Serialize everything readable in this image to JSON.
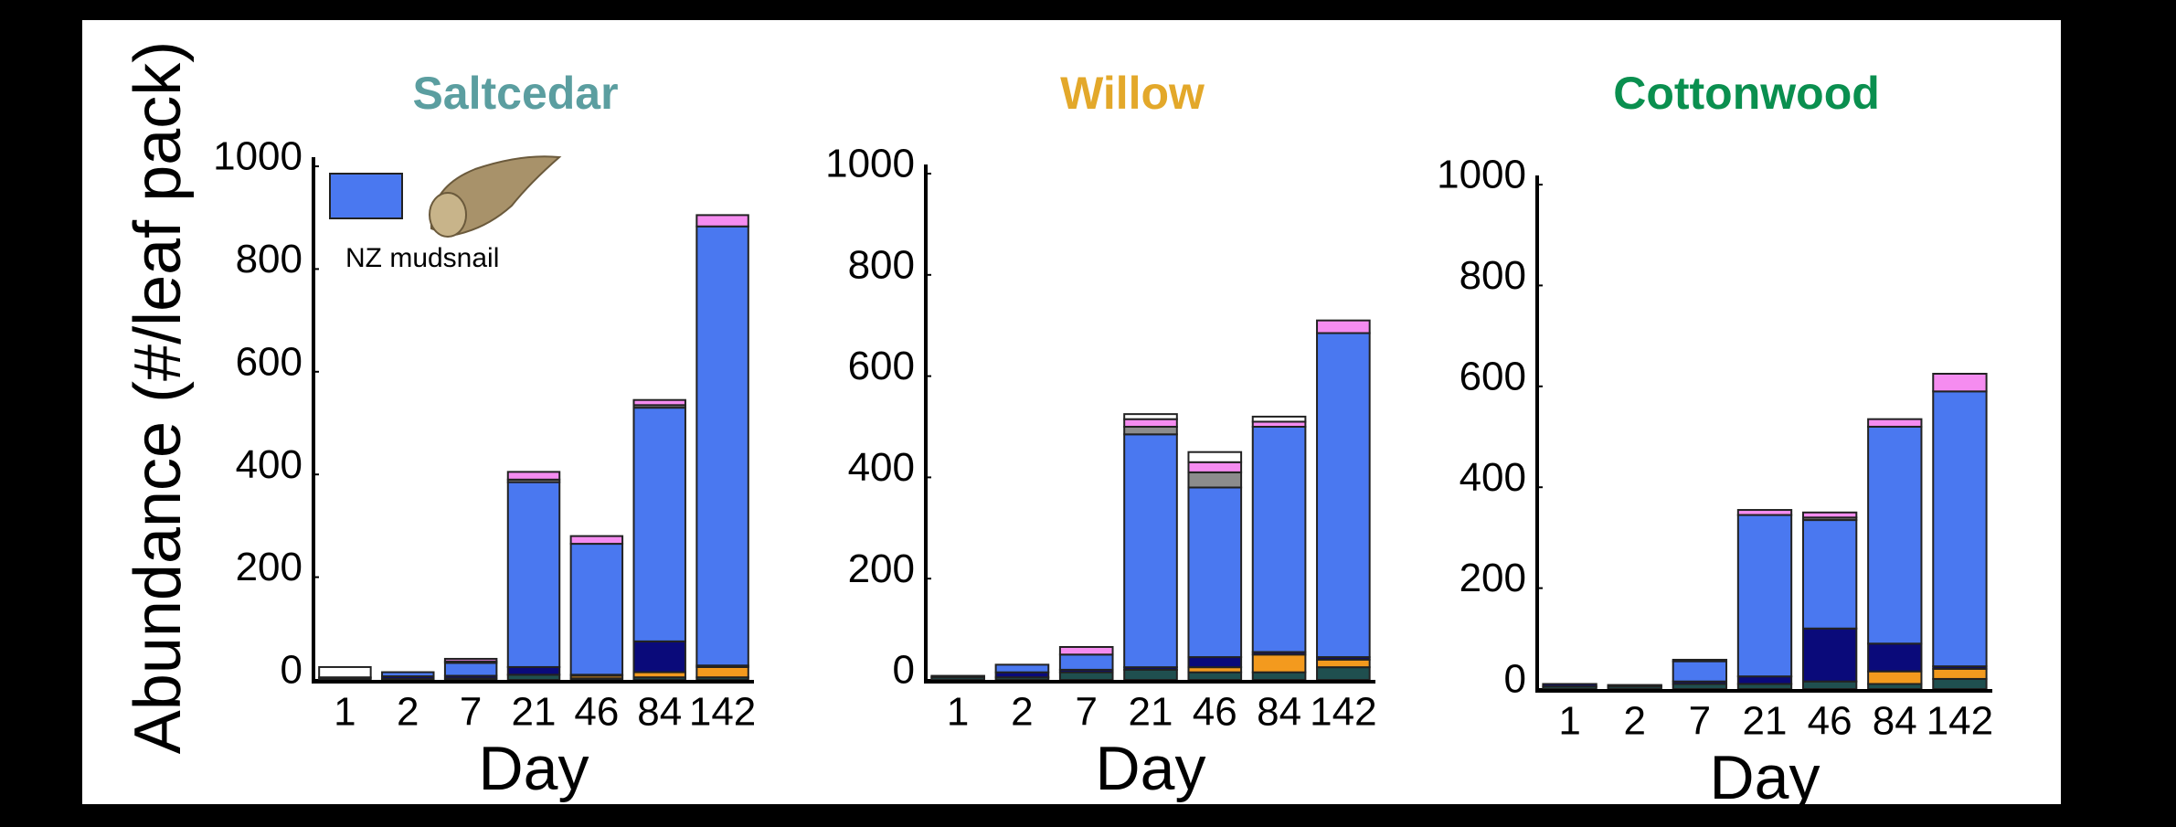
{
  "ylabel": "Abundance (#/leaf pack)",
  "chart_data": [
    {
      "type": "stacked-bar",
      "title": "Saltcedar",
      "title_color": "#5b9ea0",
      "xlabel": "Day",
      "categories": [
        "1",
        "2",
        "7",
        "21",
        "46",
        "84",
        "142"
      ],
      "ylim": [
        0,
        1000
      ],
      "yticks": [
        0,
        200,
        400,
        600,
        800,
        1000
      ],
      "series": [
        {
          "color": "#1f4f4f",
          "values": [
            3,
            2,
            3,
            10,
            3,
            5,
            5
          ]
        },
        {
          "color": "#f39a1e",
          "values": [
            0,
            0,
            0,
            0,
            5,
            10,
            20
          ]
        },
        {
          "color": "#0a0a7a",
          "values": [
            2,
            5,
            5,
            15,
            2,
            60,
            3
          ]
        },
        {
          "name": "NZ mudsnail",
          "color": "#4a78f0",
          "values": [
            0,
            8,
            25,
            360,
            255,
            455,
            855
          ]
        },
        {
          "color": "#8c8c8c",
          "values": [
            0,
            0,
            3,
            5,
            0,
            5,
            0
          ]
        },
        {
          "color": "#f58cf0",
          "values": [
            0,
            0,
            5,
            15,
            15,
            10,
            22
          ]
        },
        {
          "color": "#ffffff",
          "values": [
            20,
            0,
            0,
            0,
            0,
            0,
            0
          ]
        }
      ]
    },
    {
      "type": "stacked-bar",
      "title": "Willow",
      "title_color": "#e3a82a",
      "xlabel": "Day",
      "categories": [
        "1",
        "2",
        "7",
        "21",
        "46",
        "84",
        "142"
      ],
      "ylim": [
        0,
        1000
      ],
      "yticks": [
        0,
        200,
        400,
        600,
        800,
        1000
      ],
      "series": [
        {
          "color": "#1f4f4f",
          "values": [
            5,
            5,
            15,
            20,
            15,
            15,
            25
          ]
        },
        {
          "color": "#f39a1e",
          "values": [
            0,
            0,
            0,
            0,
            10,
            35,
            15
          ]
        },
        {
          "color": "#0a0a7a",
          "values": [
            3,
            10,
            5,
            5,
            20,
            5,
            5
          ]
        },
        {
          "color": "#4a78f0",
          "values": [
            0,
            15,
            30,
            460,
            335,
            445,
            640
          ]
        },
        {
          "color": "#8c8c8c",
          "values": [
            0,
            0,
            0,
            15,
            30,
            0,
            0
          ]
        },
        {
          "color": "#f58cf0",
          "values": [
            0,
            0,
            15,
            15,
            20,
            10,
            25
          ]
        },
        {
          "color": "#ffffff",
          "values": [
            0,
            0,
            0,
            10,
            20,
            10,
            0
          ]
        }
      ]
    },
    {
      "type": "stacked-bar",
      "title": "Cottonwood",
      "title_color": "#0a8f4f",
      "xlabel": "Day",
      "categories": [
        "1",
        "2",
        "7",
        "21",
        "46",
        "84",
        "142"
      ],
      "ylim": [
        0,
        1000
      ],
      "yticks": [
        0,
        200,
        400,
        600,
        800,
        1000
      ],
      "series": [
        {
          "color": "#1f4f4f",
          "values": [
            5,
            5,
            10,
            10,
            15,
            10,
            20
          ]
        },
        {
          "color": "#f39a1e",
          "values": [
            0,
            0,
            0,
            0,
            0,
            25,
            20
          ]
        },
        {
          "color": "#0a0a7a",
          "values": [
            5,
            3,
            5,
            15,
            105,
            55,
            5
          ]
        },
        {
          "color": "#4a78f0",
          "values": [
            0,
            0,
            40,
            320,
            215,
            430,
            545
          ]
        },
        {
          "color": "#8c8c8c",
          "values": [
            0,
            0,
            0,
            0,
            5,
            0,
            0
          ]
        },
        {
          "color": "#f58cf0",
          "values": [
            0,
            0,
            3,
            10,
            10,
            15,
            35
          ]
        },
        {
          "color": "#ffffff",
          "values": [
            0,
            0,
            0,
            0,
            0,
            0,
            0
          ]
        }
      ]
    }
  ]
}
